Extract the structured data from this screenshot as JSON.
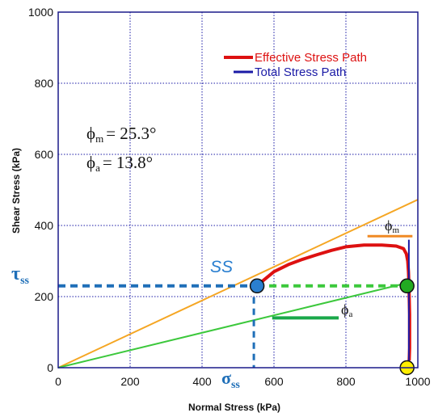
{
  "chart_data": {
    "type": "line",
    "xlabel": "Normal Stress (kPa)",
    "ylabel": "Shear Stress (kPa)",
    "xlim": [
      0,
      1000
    ],
    "ylim": [
      0,
      1000
    ],
    "xticks": [
      "0",
      "200",
      "400",
      "600",
      "800",
      "1000"
    ],
    "yticks": [
      "0",
      "200",
      "400",
      "600",
      "800",
      "1000"
    ],
    "grid": true,
    "legend_position": "top-right",
    "series": [
      {
        "name": "Effective Stress Path",
        "color": "#dd1111",
        "points": [
          [
            550,
            228
          ],
          [
            570,
            245
          ],
          [
            600,
            270
          ],
          [
            640,
            290
          ],
          [
            680,
            305
          ],
          [
            720,
            318
          ],
          [
            760,
            330
          ],
          [
            800,
            340
          ],
          [
            850,
            345
          ],
          [
            900,
            345
          ],
          [
            940,
            342
          ],
          [
            960,
            335
          ],
          [
            968,
            320
          ],
          [
            972,
            300
          ],
          [
            974,
            270
          ],
          [
            975,
            240
          ],
          [
            976,
            200
          ],
          [
            977,
            150
          ],
          [
            977,
            100
          ],
          [
            977,
            55
          ],
          [
            976,
            20
          ]
        ]
      },
      {
        "name": "Total Stress Path",
        "color": "#1a1aa6",
        "points": [
          [
            975,
            360
          ],
          [
            975,
            0
          ]
        ]
      }
    ],
    "envelopes": [
      {
        "phi": "m",
        "angle_deg": 25.3,
        "color": "#f5a623",
        "x_range": [
          0,
          1000
        ]
      },
      {
        "phi": "a",
        "angle_deg": 13.8,
        "color": "#3cc83c",
        "x_range": [
          0,
          960
        ]
      }
    ],
    "phi_labels": {
      "phi_m_text": "ϕm = 25.3°",
      "phi_a_text": "ϕa = 13.8°",
      "phi_symbol": "ϕ",
      "m_sub": "m",
      "a_sub": "a",
      "equals_m": "= 25.3°",
      "equals_a": "= 13.8°"
    },
    "annotations": {
      "ss_label": "SS",
      "tau_symbol": "τ",
      "sigma_symbol": "σ",
      "ss_sub": "ss",
      "steady_state_point": {
        "x": 553,
        "y": 230,
        "color": "#2a7fd0"
      },
      "phase_transform_point": {
        "x": 970,
        "y": 230,
        "color": "#22aa22"
      },
      "initial_point": {
        "x": 970,
        "y": 0,
        "color": "#ffee00"
      },
      "phi_m_marker_y": 370,
      "phi_m_marker_x": [
        860,
        985
      ],
      "phi_a_marker_y": 140,
      "phi_a_marker_x": [
        595,
        780
      ]
    }
  }
}
